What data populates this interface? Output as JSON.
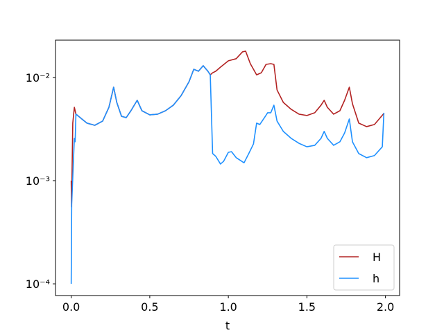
{
  "chart_data": {
    "type": "line",
    "xlabel": "t",
    "log_y": true,
    "legend": "lower right",
    "xlim": [
      -0.1,
      2.09
    ],
    "ylim": [
      7.7e-05,
      0.023
    ],
    "xticks": [
      {
        "value": 0,
        "label": "0.0"
      },
      {
        "value": 0.5,
        "label": "0.5"
      },
      {
        "value": 1,
        "label": "1.0"
      },
      {
        "value": 1.5,
        "label": "1.5"
      },
      {
        "value": 2,
        "label": "2.0"
      }
    ],
    "yticks": [
      {
        "value": 0.0001,
        "label": "10⁻⁴"
      },
      {
        "value": 0.001,
        "label": "10⁻³"
      },
      {
        "value": 0.01,
        "label": "10⁻²"
      }
    ],
    "series": [
      {
        "name": "H",
        "color": "#b22222",
        "x": [
          0,
          0.002,
          0.01,
          0.02,
          0.03,
          0.1,
          0.15,
          0.2,
          0.24,
          0.27,
          0.29,
          0.32,
          0.35,
          0.38,
          0.42,
          0.45,
          0.5,
          0.55,
          0.6,
          0.65,
          0.7,
          0.75,
          0.78,
          0.81,
          0.84,
          0.87,
          0.885,
          0.9,
          0.92,
          0.95,
          1.0,
          1.05,
          1.09,
          1.11,
          1.14,
          1.18,
          1.21,
          1.24,
          1.27,
          1.29,
          1.31,
          1.35,
          1.4,
          1.45,
          1.5,
          1.55,
          1.59,
          1.61,
          1.63,
          1.67,
          1.71,
          1.74,
          1.77,
          1.79,
          1.83,
          1.88,
          1.93,
          1.99
        ],
        "values": [
          0.001,
          0.000556,
          0.00361,
          0.00514,
          0.00441,
          0.00361,
          0.00344,
          0.00378,
          0.00514,
          0.00805,
          0.00573,
          0.00421,
          0.00408,
          0.00476,
          0.00601,
          0.00476,
          0.00434,
          0.00441,
          0.00476,
          0.00539,
          0.00669,
          0.00911,
          0.012,
          0.0115,
          0.013,
          0.0115,
          0.0106,
          0.0111,
          0.0115,
          0.0126,
          0.0145,
          0.0152,
          0.0177,
          0.018,
          0.0136,
          0.0106,
          0.0111,
          0.0134,
          0.0136,
          0.0134,
          0.00757,
          0.00573,
          0.00491,
          0.00441,
          0.00428,
          0.00455,
          0.00539,
          0.00601,
          0.00514,
          0.00441,
          0.00476,
          0.00601,
          0.00805,
          0.00556,
          0.00361,
          0.00334,
          0.0035,
          0.00448
        ]
      },
      {
        "name": "h",
        "color": "#1e90ff",
        "x": [
          0,
          0.003,
          0.02,
          0.025,
          0.03,
          0.1,
          0.15,
          0.2,
          0.24,
          0.27,
          0.29,
          0.32,
          0.35,
          0.38,
          0.42,
          0.45,
          0.5,
          0.55,
          0.6,
          0.65,
          0.7,
          0.75,
          0.78,
          0.81,
          0.84,
          0.87,
          0.885,
          0.9,
          0.92,
          0.95,
          0.97,
          1.0,
          1.02,
          1.05,
          1.1,
          1.13,
          1.16,
          1.18,
          1.2,
          1.23,
          1.25,
          1.27,
          1.29,
          1.31,
          1.35,
          1.4,
          1.45,
          1.5,
          1.55,
          1.59,
          1.61,
          1.63,
          1.67,
          1.71,
          1.74,
          1.77,
          1.79,
          1.83,
          1.88,
          1.93,
          1.98,
          1.99
        ],
        "values": [
          0.0001,
          0.000591,
          0.00257,
          0.00238,
          0.00441,
          0.00361,
          0.00344,
          0.00378,
          0.00514,
          0.00805,
          0.00573,
          0.00421,
          0.00408,
          0.00476,
          0.00601,
          0.00476,
          0.00434,
          0.00441,
          0.00476,
          0.00539,
          0.00669,
          0.00911,
          0.012,
          0.0115,
          0.013,
          0.0115,
          0.0106,
          0.00183,
          0.00172,
          0.00145,
          0.00154,
          0.00188,
          0.00191,
          0.00167,
          0.00149,
          0.00183,
          0.00227,
          0.00361,
          0.0035,
          0.00408,
          0.00455,
          0.00455,
          0.00539,
          0.00378,
          0.003,
          0.00257,
          0.0023,
          0.00213,
          0.0022,
          0.00257,
          0.003,
          0.00257,
          0.0022,
          0.00238,
          0.0029,
          0.00396,
          0.00238,
          0.00183,
          0.00167,
          0.00175,
          0.00213,
          0.00455
        ]
      }
    ]
  }
}
